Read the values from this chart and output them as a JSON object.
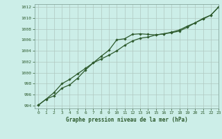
{
  "title": "Graphe pression niveau de la mer (hPa)",
  "background_color": "#cceee8",
  "line_color": "#2d5a2d",
  "grid_color": "#b0c8c0",
  "xlim": [
    -0.5,
    23
  ],
  "ylim": [
    993.5,
    1012.5
  ],
  "yticks": [
    994,
    996,
    998,
    1000,
    1002,
    1004,
    1006,
    1008,
    1010,
    1012
  ],
  "xticks": [
    0,
    1,
    2,
    3,
    4,
    5,
    6,
    7,
    8,
    9,
    10,
    11,
    12,
    13,
    14,
    15,
    16,
    17,
    18,
    19,
    20,
    21,
    22,
    23
  ],
  "series1_x": [
    0,
    1,
    2,
    3,
    4,
    5,
    6,
    7,
    8,
    9,
    10,
    11,
    12,
    13,
    14,
    15,
    16,
    17,
    18,
    19,
    20,
    21,
    22,
    23
  ],
  "series1_y": [
    994.1,
    995.2,
    995.8,
    997.2,
    997.8,
    999.0,
    1000.5,
    1001.8,
    1003.0,
    1004.1,
    1006.0,
    1006.2,
    1007.0,
    1007.1,
    1007.0,
    1006.9,
    1007.1,
    1007.3,
    1007.6,
    1008.3,
    1009.1,
    1009.9,
    1010.5,
    1012.0
  ],
  "series2_x": [
    0,
    1,
    2,
    3,
    4,
    5,
    6,
    7,
    8,
    9,
    10,
    11,
    12,
    13,
    14,
    15,
    16,
    17,
    18,
    19,
    20,
    21,
    22,
    23
  ],
  "series2_y": [
    994.1,
    995.2,
    996.4,
    998.0,
    998.8,
    999.8,
    1000.8,
    1001.8,
    1002.5,
    1003.2,
    1004.0,
    1005.0,
    1005.8,
    1006.3,
    1006.5,
    1006.9,
    1007.1,
    1007.4,
    1007.8,
    1008.5,
    1009.1,
    1009.8,
    1010.5,
    1012.0
  ]
}
